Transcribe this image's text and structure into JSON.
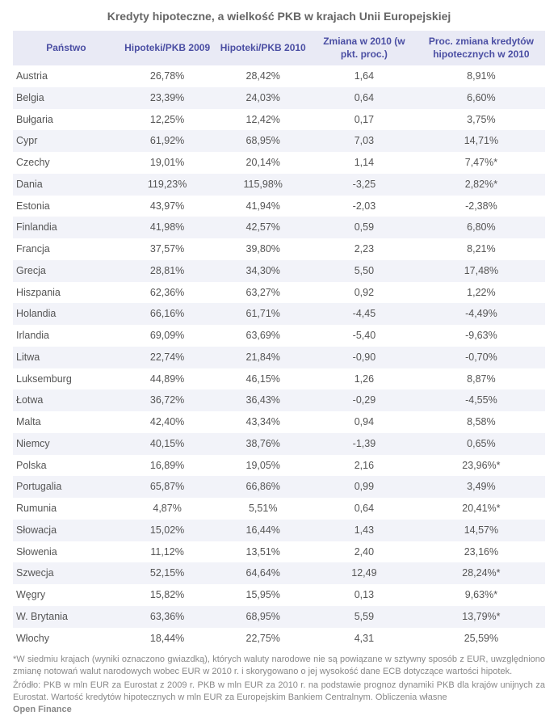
{
  "title": "Kredyty hipoteczne, a wielkość PKB w krajach Unii Europejskiej",
  "table": {
    "type": "table",
    "background_color": "#ffffff",
    "header_bg": "#e9eaf5",
    "header_text_color": "#4a4ea3",
    "row_alt_bg": "#f2f3f9",
    "cell_text_color": "#555555",
    "title_color": "#666666",
    "title_fontsize": 14,
    "header_fontsize": 12,
    "cell_fontsize": 12.5,
    "columns": [
      "Państwo",
      "Hipoteki/PKB 2009",
      "Hipoteki/PKB 2010",
      "Zmiana w 2010 (w pkt. proc.)",
      "Proc. zmiana kredytów hipotecznych w 2010"
    ],
    "rows": [
      [
        "Austria",
        "26,78%",
        "28,42%",
        "1,64",
        "8,91%"
      ],
      [
        "Belgia",
        "23,39%",
        "24,03%",
        "0,64",
        "6,60%"
      ],
      [
        "Bułgaria",
        "12,25%",
        "12,42%",
        "0,17",
        "3,75%"
      ],
      [
        "Cypr",
        "61,92%",
        "68,95%",
        "7,03",
        "14,71%"
      ],
      [
        "Czechy",
        "19,01%",
        "20,14%",
        "1,14",
        "7,47%*"
      ],
      [
        "Dania",
        "119,23%",
        "115,98%",
        "-3,25",
        "2,82%*"
      ],
      [
        "Estonia",
        "43,97%",
        "41,94%",
        "-2,03",
        "-2,38%"
      ],
      [
        "Finlandia",
        "41,98%",
        "42,57%",
        "0,59",
        "6,80%"
      ],
      [
        "Francja",
        "37,57%",
        "39,80%",
        "2,23",
        "8,21%"
      ],
      [
        "Grecja",
        "28,81%",
        "34,30%",
        "5,50",
        "17,48%"
      ],
      [
        "Hiszpania",
        "62,36%",
        "63,27%",
        "0,92",
        "1,22%"
      ],
      [
        "Holandia",
        "66,16%",
        "61,71%",
        "-4,45",
        "-4,49%"
      ],
      [
        "Irlandia",
        "69,09%",
        "63,69%",
        "-5,40",
        "-9,63%"
      ],
      [
        "Litwa",
        "22,74%",
        "21,84%",
        "-0,90",
        "-0,70%"
      ],
      [
        "Luksemburg",
        "44,89%",
        "46,15%",
        "1,26",
        "8,87%"
      ],
      [
        "Łotwa",
        "36,72%",
        "36,43%",
        "-0,29",
        "-4,55%"
      ],
      [
        "Malta",
        "42,40%",
        "43,34%",
        "0,94",
        "8,58%"
      ],
      [
        "Niemcy",
        "40,15%",
        "38,76%",
        "-1,39",
        "0,65%"
      ],
      [
        "Polska",
        "16,89%",
        "19,05%",
        "2,16",
        "23,96%*"
      ],
      [
        "Portugalia",
        "65,87%",
        "66,86%",
        "0,99",
        "3,49%"
      ],
      [
        "Rumunia",
        "4,87%",
        "5,51%",
        "0,64",
        "20,41%*"
      ],
      [
        "Słowacja",
        "15,02%",
        "16,44%",
        "1,43",
        "14,57%"
      ],
      [
        "Słowenia",
        "11,12%",
        "13,51%",
        "2,40",
        "23,16%"
      ],
      [
        "Szwecja",
        "52,15%",
        "64,64%",
        "12,49",
        "28,24%*"
      ],
      [
        "Węgry",
        "15,82%",
        "15,95%",
        "0,13",
        "9,63%*"
      ],
      [
        "W. Brytania",
        "63,36%",
        "68,95%",
        "5,59",
        "13,79%*"
      ],
      [
        "Włochy",
        "18,44%",
        "22,75%",
        "4,31",
        "25,59%"
      ]
    ]
  },
  "footnote": "*W siedmiu krajach (wyniki oznaczono gwiazdką), których waluty narodowe nie są powiązane w sztywny sposób z EUR, uwzględniono zmianę notowań walut narodowych wobec EUR w 2010 r. i skorygowano o jej wysokość dane ECB dotyczące wartości hipotek.",
  "source": "Źródło: PKB w mln EUR za Eurostat z 2009 r. PKB w mln EUR za 2010 r. na podstawie prognoz dynamiki PKB dla krajów unijnych za Eurostat. Wartość kredytów hipotecznych w mln EUR za Europejskim Bankiem Centralnym. Obliczenia własne",
  "brand": "Open Finance"
}
